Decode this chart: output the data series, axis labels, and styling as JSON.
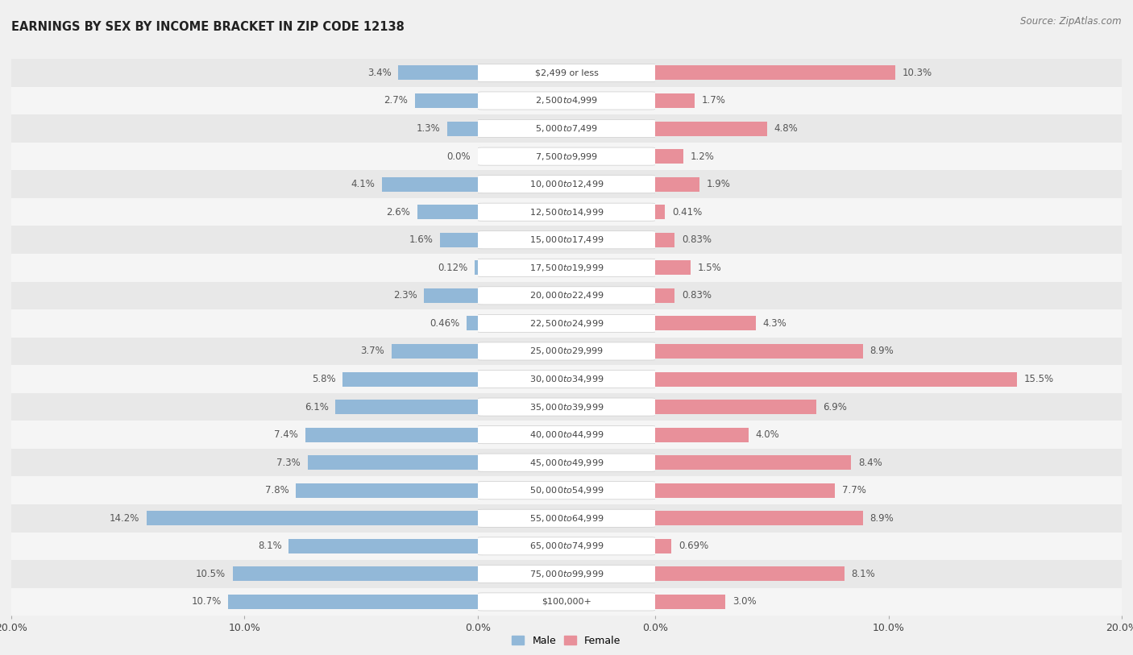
{
  "title": "EARNINGS BY SEX BY INCOME BRACKET IN ZIP CODE 12138",
  "source": "Source: ZipAtlas.com",
  "categories": [
    "$2,499 or less",
    "$2,500 to $4,999",
    "$5,000 to $7,499",
    "$7,500 to $9,999",
    "$10,000 to $12,499",
    "$12,500 to $14,999",
    "$15,000 to $17,499",
    "$17,500 to $19,999",
    "$20,000 to $22,499",
    "$22,500 to $24,999",
    "$25,000 to $29,999",
    "$30,000 to $34,999",
    "$35,000 to $39,999",
    "$40,000 to $44,999",
    "$45,000 to $49,999",
    "$50,000 to $54,999",
    "$55,000 to $64,999",
    "$65,000 to $74,999",
    "$75,000 to $99,999",
    "$100,000+"
  ],
  "male_values": [
    3.4,
    2.7,
    1.3,
    0.0,
    4.1,
    2.6,
    1.6,
    0.12,
    2.3,
    0.46,
    3.7,
    5.8,
    6.1,
    7.4,
    7.3,
    7.8,
    14.2,
    8.1,
    10.5,
    10.7
  ],
  "female_values": [
    10.3,
    1.7,
    4.8,
    1.2,
    1.9,
    0.41,
    0.83,
    1.5,
    0.83,
    4.3,
    8.9,
    15.5,
    6.9,
    4.0,
    8.4,
    7.7,
    8.9,
    0.69,
    8.1,
    3.0
  ],
  "male_color": "#92b8d8",
  "female_color": "#e8909a",
  "label_color": "#444444",
  "value_color": "#555555",
  "background_color": "#f0f0f0",
  "row_even_color": "#e8e8e8",
  "row_odd_color": "#f5f5f5",
  "axis_max": 20.0,
  "bar_height": 0.52,
  "label_fontsize": 8.5,
  "title_fontsize": 10.5,
  "source_fontsize": 8.5,
  "tick_fontsize": 9.0
}
